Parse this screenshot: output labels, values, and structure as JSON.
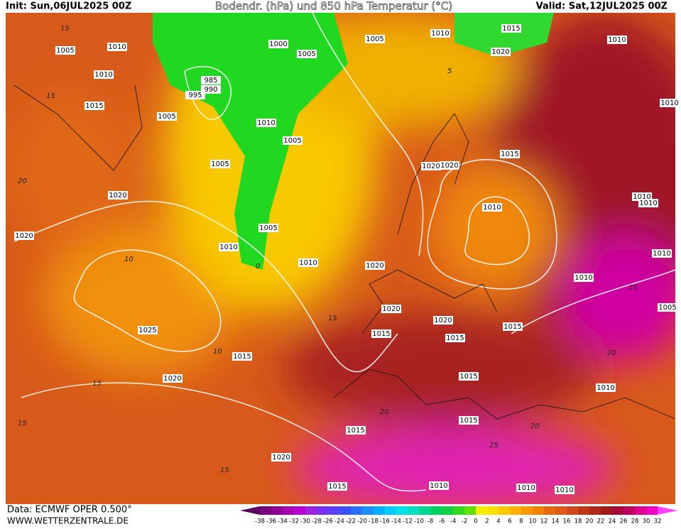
{
  "header": {
    "init": "Init: Sun,06JUL2025 00Z",
    "title": "Bodendr. (hPa) und 850 hPa Temperatur (°C)",
    "valid": "Valid: Sat,12JUL2025 00Z"
  },
  "footer": {
    "source": "Data: ECMWF OPER 0.500°",
    "site": "WWW.WETTERZENTRALE.DE"
  },
  "colorbar": {
    "labels": [
      -38,
      -36,
      -34,
      -32,
      -30,
      -28,
      -26,
      -24,
      -22,
      -20,
      -18,
      -16,
      -14,
      -12,
      -10,
      -8,
      -6,
      -4,
      -2,
      0,
      2,
      4,
      6,
      8,
      10,
      12,
      14,
      16,
      18,
      20,
      22,
      24,
      26,
      28,
      30,
      32
    ],
    "colors": [
      "#5a0060",
      "#780078",
      "#900090",
      "#a800b0",
      "#b800d0",
      "#a020e0",
      "#7a30f0",
      "#5a40ff",
      "#3a50ff",
      "#2a70ff",
      "#1a90ff",
      "#00b0ff",
      "#00ccff",
      "#00e0e8",
      "#00e0c0",
      "#00d890",
      "#00d060",
      "#10d040",
      "#30d820",
      "#60e000",
      "#f0f000",
      "#ffe000",
      "#ffc800",
      "#ffb000",
      "#f89800",
      "#f08000",
      "#e86810",
      "#e05818",
      "#d04818",
      "#c03818",
      "#b02818",
      "#a01818",
      "#a80838",
      "#c00060",
      "#e00090",
      "#f000c0",
      "#ff40ff"
    ]
  },
  "isobar_labels": [
    "1005",
    "1010",
    "1010",
    "1015",
    "985",
    "990",
    "995",
    "1000",
    "1005",
    "1005",
    "1010",
    "1005",
    "1005",
    "1020",
    "1020",
    "1005",
    "1010",
    "1010",
    "1025",
    "1015",
    "1020",
    "1005",
    "1010",
    "1015",
    "1020",
    "1010",
    "1015",
    "1020",
    "1020",
    "1010",
    "1010",
    "1010",
    "1010",
    "1010",
    "1005",
    "1020",
    "1020",
    "1015",
    "1020",
    "1015",
    "1015",
    "1015",
    "1010",
    "1015",
    "1015",
    "1020",
    "1015",
    "1010",
    "1010",
    "1010",
    "1010"
  ],
  "temperature_labels": [
    "15",
    "15",
    "10",
    "5",
    "0",
    "15",
    "10",
    "20",
    "25",
    "20",
    "15",
    "15",
    "20",
    "25",
    "20",
    "15"
  ]
}
